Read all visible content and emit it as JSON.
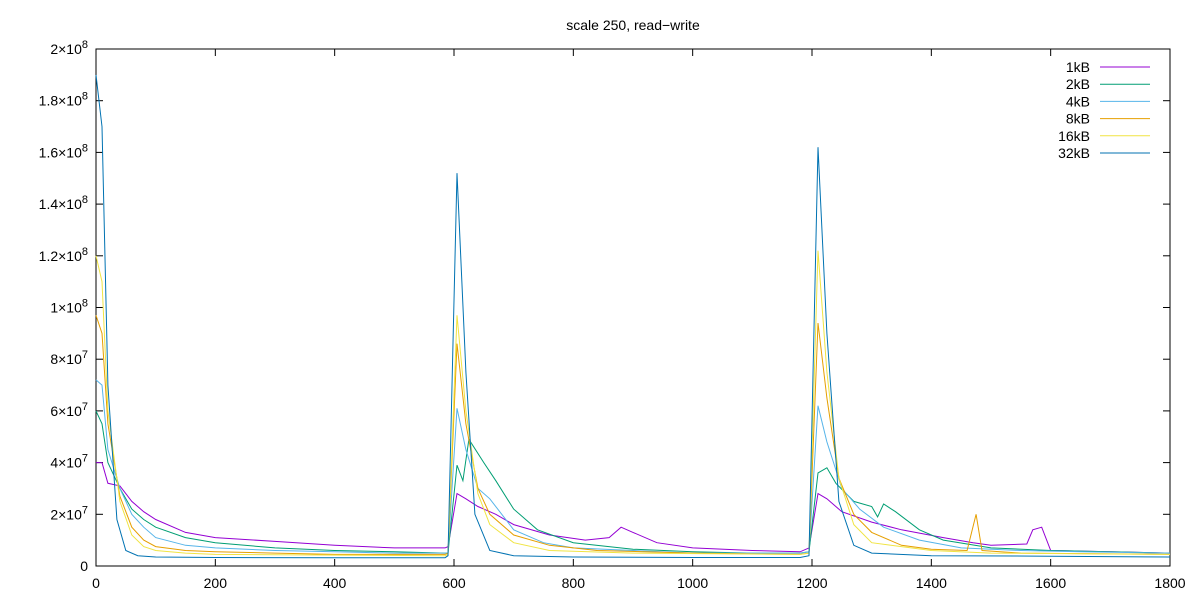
{
  "chart_data": {
    "type": "line",
    "title": "scale 250, read−write",
    "xlabel": "",
    "ylabel": "",
    "xlim": [
      0,
      1800
    ],
    "ylim": [
      0,
      200000000
    ],
    "grid": false,
    "legend_position": "top-right",
    "x_ticks": [
      0,
      200,
      400,
      600,
      800,
      1000,
      1200,
      1400,
      1600,
      1800
    ],
    "y_ticks": [
      {
        "value": 0,
        "mant": "0",
        "exp": ""
      },
      {
        "value": 20000000,
        "mant": "2×10",
        "exp": "7"
      },
      {
        "value": 40000000,
        "mant": "4×10",
        "exp": "7"
      },
      {
        "value": 60000000,
        "mant": "6×10",
        "exp": "7"
      },
      {
        "value": 80000000,
        "mant": "8×10",
        "exp": "7"
      },
      {
        "value": 100000000,
        "mant": "1×10",
        "exp": "8"
      },
      {
        "value": 120000000,
        "mant": "1.2×10",
        "exp": "8"
      },
      {
        "value": 140000000,
        "mant": "1.4×10",
        "exp": "8"
      },
      {
        "value": 160000000,
        "mant": "1.6×10",
        "exp": "8"
      },
      {
        "value": 180000000,
        "mant": "1.8×10",
        "exp": "8"
      },
      {
        "value": 200000000,
        "mant": "2×10",
        "exp": "8"
      }
    ],
    "series": [
      {
        "name": "1kB",
        "color": "#9400d3",
        "points": [
          [
            0,
            40000000
          ],
          [
            10,
            40000000
          ],
          [
            20,
            32000000
          ],
          [
            40,
            31000000
          ],
          [
            60,
            25000000
          ],
          [
            80,
            21000000
          ],
          [
            100,
            18000000
          ],
          [
            150,
            13000000
          ],
          [
            200,
            11000000
          ],
          [
            300,
            9500000
          ],
          [
            400,
            8000000
          ],
          [
            500,
            7000000
          ],
          [
            585,
            7000000
          ],
          [
            590,
            7500000
          ],
          [
            605,
            28000000
          ],
          [
            620,
            26000000
          ],
          [
            640,
            23000000
          ],
          [
            670,
            20000000
          ],
          [
            700,
            16000000
          ],
          [
            760,
            12000000
          ],
          [
            820,
            10000000
          ],
          [
            860,
            11000000
          ],
          [
            880,
            15000000
          ],
          [
            900,
            13000000
          ],
          [
            940,
            9000000
          ],
          [
            1000,
            7000000
          ],
          [
            1100,
            6000000
          ],
          [
            1180,
            5500000
          ],
          [
            1195,
            7000000
          ],
          [
            1210,
            28000000
          ],
          [
            1225,
            26000000
          ],
          [
            1250,
            21000000
          ],
          [
            1300,
            17000000
          ],
          [
            1350,
            14000000
          ],
          [
            1420,
            11000000
          ],
          [
            1470,
            9000000
          ],
          [
            1500,
            8000000
          ],
          [
            1560,
            8500000
          ],
          [
            1570,
            14000000
          ],
          [
            1585,
            15000000
          ],
          [
            1600,
            6000000
          ],
          [
            1700,
            5500000
          ],
          [
            1800,
            5000000
          ]
        ]
      },
      {
        "name": "2kB",
        "color": "#009e73",
        "points": [
          [
            0,
            60000000
          ],
          [
            10,
            55000000
          ],
          [
            20,
            40000000
          ],
          [
            40,
            30000000
          ],
          [
            60,
            22000000
          ],
          [
            80,
            18000000
          ],
          [
            100,
            15000000
          ],
          [
            150,
            11000000
          ],
          [
            200,
            9000000
          ],
          [
            300,
            7000000
          ],
          [
            400,
            6000000
          ],
          [
            500,
            5500000
          ],
          [
            585,
            5000000
          ],
          [
            590,
            5000000
          ],
          [
            605,
            39000000
          ],
          [
            615,
            33000000
          ],
          [
            625,
            49000000
          ],
          [
            650,
            40000000
          ],
          [
            670,
            33000000
          ],
          [
            700,
            22000000
          ],
          [
            740,
            14000000
          ],
          [
            800,
            9000000
          ],
          [
            900,
            6500000
          ],
          [
            1000,
            5500000
          ],
          [
            1100,
            5000000
          ],
          [
            1180,
            5000000
          ],
          [
            1195,
            5500000
          ],
          [
            1210,
            36000000
          ],
          [
            1225,
            38000000
          ],
          [
            1240,
            32000000
          ],
          [
            1270,
            25000000
          ],
          [
            1300,
            23000000
          ],
          [
            1310,
            19000000
          ],
          [
            1320,
            24000000
          ],
          [
            1340,
            21000000
          ],
          [
            1380,
            14000000
          ],
          [
            1420,
            10000000
          ],
          [
            1500,
            7000000
          ],
          [
            1600,
            6000000
          ],
          [
            1700,
            5500000
          ],
          [
            1800,
            5000000
          ]
        ]
      },
      {
        "name": "4kB",
        "color": "#56b4e9",
        "points": [
          [
            0,
            72000000
          ],
          [
            10,
            70000000
          ],
          [
            20,
            45000000
          ],
          [
            40,
            30000000
          ],
          [
            60,
            20000000
          ],
          [
            80,
            15000000
          ],
          [
            100,
            11000000
          ],
          [
            150,
            8000000
          ],
          [
            200,
            7000000
          ],
          [
            300,
            6000000
          ],
          [
            400,
            5500000
          ],
          [
            500,
            5000000
          ],
          [
            585,
            5000000
          ],
          [
            590,
            5000000
          ],
          [
            605,
            61000000
          ],
          [
            620,
            45000000
          ],
          [
            640,
            30000000
          ],
          [
            660,
            26000000
          ],
          [
            700,
            14000000
          ],
          [
            750,
            9000000
          ],
          [
            800,
            7000000
          ],
          [
            900,
            6000000
          ],
          [
            1000,
            5000000
          ],
          [
            1100,
            5000000
          ],
          [
            1180,
            5000000
          ],
          [
            1195,
            5500000
          ],
          [
            1210,
            62000000
          ],
          [
            1225,
            48000000
          ],
          [
            1250,
            30000000
          ],
          [
            1280,
            22000000
          ],
          [
            1320,
            15000000
          ],
          [
            1380,
            10000000
          ],
          [
            1450,
            7000000
          ],
          [
            1550,
            6000000
          ],
          [
            1650,
            5500000
          ],
          [
            1800,
            5000000
          ]
        ]
      },
      {
        "name": "8kB",
        "color": "#e69f00",
        "points": [
          [
            0,
            97000000
          ],
          [
            10,
            90000000
          ],
          [
            20,
            55000000
          ],
          [
            40,
            27000000
          ],
          [
            60,
            15000000
          ],
          [
            80,
            10000000
          ],
          [
            100,
            7500000
          ],
          [
            150,
            6000000
          ],
          [
            200,
            5500000
          ],
          [
            300,
            5000000
          ],
          [
            400,
            4500000
          ],
          [
            500,
            4500000
          ],
          [
            585,
            4500000
          ],
          [
            590,
            5000000
          ],
          [
            605,
            86000000
          ],
          [
            620,
            55000000
          ],
          [
            640,
            30000000
          ],
          [
            660,
            20000000
          ],
          [
            700,
            12000000
          ],
          [
            760,
            8000000
          ],
          [
            840,
            6000000
          ],
          [
            1000,
            5000000
          ],
          [
            1180,
            4500000
          ],
          [
            1195,
            5000000
          ],
          [
            1210,
            94000000
          ],
          [
            1225,
            65000000
          ],
          [
            1245,
            34000000
          ],
          [
            1270,
            20000000
          ],
          [
            1300,
            13000000
          ],
          [
            1350,
            8000000
          ],
          [
            1400,
            6500000
          ],
          [
            1460,
            6000000
          ],
          [
            1475,
            20000000
          ],
          [
            1485,
            6000000
          ],
          [
            1550,
            5000000
          ],
          [
            1800,
            4500000
          ]
        ]
      },
      {
        "name": "16kB",
        "color": "#f0e442",
        "points": [
          [
            0,
            120000000
          ],
          [
            10,
            110000000
          ],
          [
            20,
            60000000
          ],
          [
            40,
            25000000
          ],
          [
            60,
            12000000
          ],
          [
            80,
            7500000
          ],
          [
            100,
            6000000
          ],
          [
            150,
            5000000
          ],
          [
            200,
            4500000
          ],
          [
            400,
            4200000
          ],
          [
            585,
            4000000
          ],
          [
            590,
            4500000
          ],
          [
            605,
            97000000
          ],
          [
            620,
            60000000
          ],
          [
            640,
            28000000
          ],
          [
            660,
            16000000
          ],
          [
            700,
            9000000
          ],
          [
            760,
            6000000
          ],
          [
            900,
            5000000
          ],
          [
            1180,
            4500000
          ],
          [
            1195,
            5000000
          ],
          [
            1210,
            122000000
          ],
          [
            1225,
            75000000
          ],
          [
            1245,
            34000000
          ],
          [
            1270,
            16000000
          ],
          [
            1300,
            9000000
          ],
          [
            1400,
            6000000
          ],
          [
            1500,
            5000000
          ],
          [
            1800,
            4500000
          ]
        ]
      },
      {
        "name": "32kB",
        "color": "#0072b2",
        "points": [
          [
            0,
            190000000
          ],
          [
            10,
            170000000
          ],
          [
            20,
            70000000
          ],
          [
            35,
            18000000
          ],
          [
            50,
            6000000
          ],
          [
            70,
            4000000
          ],
          [
            100,
            3500000
          ],
          [
            200,
            3300000
          ],
          [
            400,
            3200000
          ],
          [
            585,
            3200000
          ],
          [
            590,
            4000000
          ],
          [
            605,
            152000000
          ],
          [
            620,
            75000000
          ],
          [
            635,
            20000000
          ],
          [
            660,
            6000000
          ],
          [
            700,
            4000000
          ],
          [
            800,
            3500000
          ],
          [
            1000,
            3300000
          ],
          [
            1180,
            3300000
          ],
          [
            1195,
            4000000
          ],
          [
            1210,
            162000000
          ],
          [
            1225,
            90000000
          ],
          [
            1245,
            25000000
          ],
          [
            1270,
            8000000
          ],
          [
            1300,
            5000000
          ],
          [
            1400,
            4000000
          ],
          [
            1600,
            3800000
          ],
          [
            1800,
            3500000
          ]
        ]
      }
    ]
  }
}
